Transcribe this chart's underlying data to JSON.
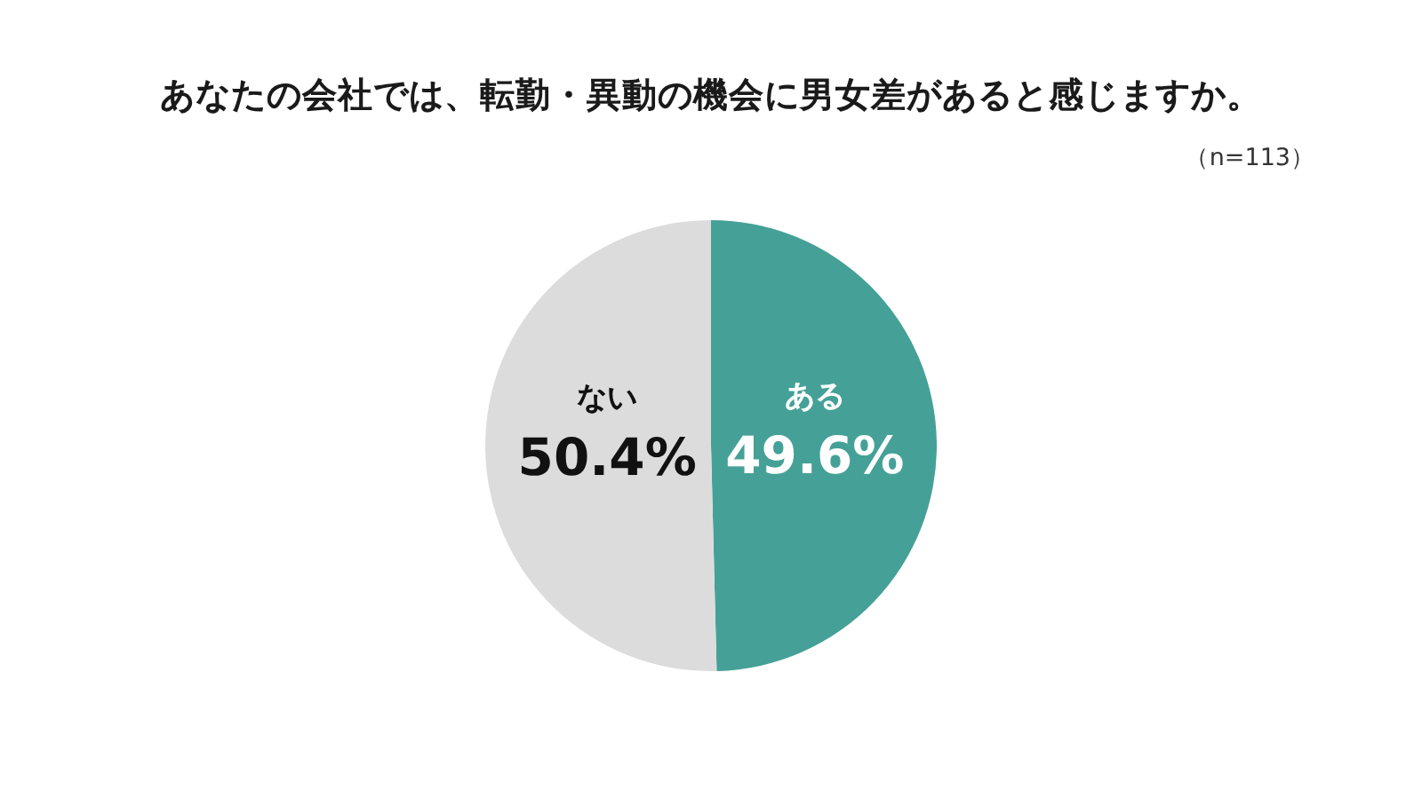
{
  "chart_data": {
    "type": "pie",
    "title": "あなたの会社では、転勤・異動の機会に男女差があると感じますか。",
    "subtitle": "（n=113）",
    "categories": [
      "ある",
      "ない"
    ],
    "values": [
      49.6,
      50.4
    ],
    "colors": [
      "#45a197",
      "#dcdcdc"
    ],
    "value_labels": [
      "49.6%",
      "50.4%"
    ]
  }
}
